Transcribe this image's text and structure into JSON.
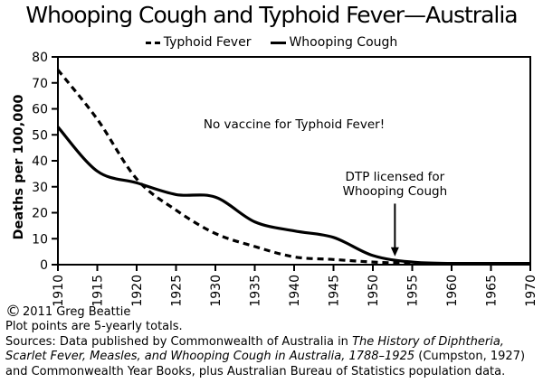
{
  "title": "Whooping Cough and Typhoid Fever—Australia",
  "legend": {
    "items": [
      {
        "label": "Typhoid Fever",
        "style": "dashed"
      },
      {
        "label": "Whooping Cough",
        "style": "solid"
      }
    ]
  },
  "chart_data": {
    "type": "line",
    "title": "Whooping Cough and Typhoid Fever—Australia",
    "xlabel": "",
    "ylabel": "Deaths per 100,000",
    "x": [
      1910,
      1915,
      1920,
      1925,
      1930,
      1935,
      1940,
      1945,
      1950,
      1955,
      1960,
      1965,
      1970
    ],
    "series": [
      {
        "name": "Typhoid Fever",
        "style": "dashed",
        "values": [
          75,
          56,
          33,
          21,
          12,
          7,
          3,
          2,
          1,
          0.5,
          0.3,
          0.2,
          0.2
        ]
      },
      {
        "name": "Whooping Cough",
        "style": "solid",
        "values": [
          53,
          36,
          31.5,
          27,
          26,
          16.5,
          13,
          10.5,
          3.5,
          1,
          0.5,
          0.3,
          0.2
        ]
      }
    ],
    "xlim": [
      1910,
      1970
    ],
    "ylim": [
      0,
      80
    ],
    "x_ticks": [
      1910,
      1915,
      1920,
      1925,
      1930,
      1935,
      1940,
      1945,
      1950,
      1955,
      1960,
      1965,
      1970
    ],
    "y_ticks": [
      0,
      10,
      20,
      30,
      40,
      50,
      60,
      70,
      80
    ],
    "grid": false,
    "legend_position": "top-center",
    "line_color": "#000000",
    "background": "#ffffff",
    "annotations": [
      {
        "text": "No vaccine for Typhoid Fever!",
        "x": 1940,
        "y": 56.7
      },
      {
        "text": "DTP licensed for\nWhooping Cough",
        "x": 1952.8,
        "y": 36.5,
        "arrow": {
          "from": 23.5,
          "to": 3.2
        }
      }
    ]
  },
  "footer": {
    "copyright_symbol": "©",
    "copyright_text": "2011 Greg Beattie",
    "note": "Plot points are 5-yearly totals.",
    "source_lines": [
      [
        {
          "t": "Sources: Data published by Commonwealth of Australia in ",
          "i": false
        },
        {
          "t": "The History of Diphtheria,",
          "i": true
        }
      ],
      [
        {
          "t": "Scarlet Fever, Measles, and Whooping Cough in Australia, 1788–1925",
          "i": true
        },
        {
          "t": " (Cumpston, 1927)",
          "i": false
        }
      ],
      [
        {
          "t": "and Commonwealth Year Books, plus Australian Bureau of Statistics population data.",
          "i": false
        }
      ]
    ]
  }
}
